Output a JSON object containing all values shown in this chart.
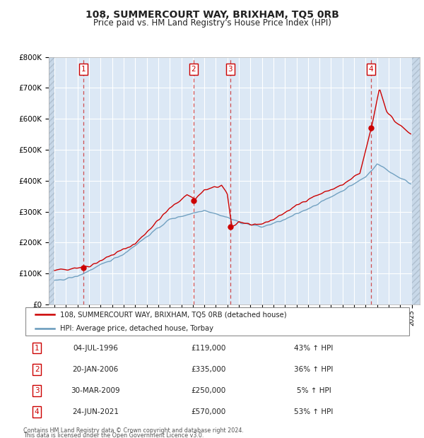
{
  "title": "108, SUMMERCOURT WAY, BRIXHAM, TQ5 0RB",
  "subtitle": "Price paid vs. HM Land Registry's House Price Index (HPI)",
  "sale_info": [
    {
      "num": "1",
      "date": "04-JUL-1996",
      "price": "£119,000",
      "pct": "43% ↑ HPI"
    },
    {
      "num": "2",
      "date": "20-JAN-2006",
      "price": "£335,000",
      "pct": "36% ↑ HPI"
    },
    {
      "num": "3",
      "date": "30-MAR-2009",
      "price": "£250,000",
      "pct": "5% ↑ HPI"
    },
    {
      "num": "4",
      "date": "24-JUN-2021",
      "price": "£570,000",
      "pct": "53% ↑ HPI"
    }
  ],
  "legend_entries": [
    {
      "color": "#cc0000",
      "label": "108, SUMMERCOURT WAY, BRIXHAM, TQ5 0RB (detached house)"
    },
    {
      "color": "#6699bb",
      "label": "HPI: Average price, detached house, Torbay"
    }
  ],
  "footer": [
    "Contains HM Land Registry data © Crown copyright and database right 2024.",
    "This data is licensed under the Open Government Licence v3.0."
  ],
  "ylim": [
    0,
    800000
  ],
  "yticks": [
    0,
    100000,
    200000,
    300000,
    400000,
    500000,
    600000,
    700000,
    800000
  ],
  "xlim_start": 1993.5,
  "xlim_end": 2025.7,
  "hatch_left_end": 1994.0,
  "hatch_right_start": 2025.0,
  "plot_bg": "#dce8f5",
  "hatch_bg": "#c8d8e8",
  "grid_color": "#ffffff",
  "red_color": "#cc0000",
  "blue_color": "#6699bb",
  "vline_color": "#cc3333",
  "sale_dates_float": [
    1996.5,
    2006.07,
    2009.25,
    2021.48
  ],
  "sale_prices": [
    119000,
    335000,
    250000,
    570000
  ],
  "sale_labels": [
    "1",
    "2",
    "3",
    "4"
  ]
}
